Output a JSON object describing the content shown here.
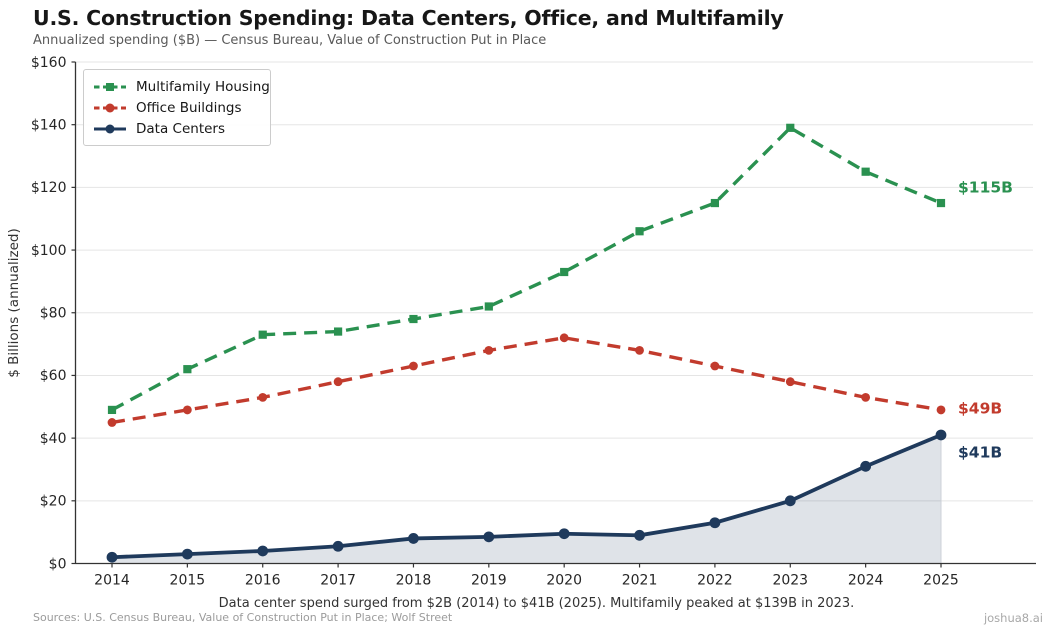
{
  "chart_data": {
    "type": "line",
    "title": "U.S. Construction Spending: Data Centers, Office, and Multifamily",
    "subtitle": "Annualized spending ($B) — Census Bureau, Value of Construction Put in Place",
    "ylabel": "$ Billions (annualized)",
    "xlabel": "",
    "categories": [
      "2014",
      "2015",
      "2016",
      "2017",
      "2018",
      "2019",
      "2020",
      "2021",
      "2022",
      "2023",
      "2024",
      "2025"
    ],
    "y_ticks": [
      "$0",
      "$20",
      "$40",
      "$60",
      "$80",
      "$100",
      "$120",
      "$140",
      "$160"
    ],
    "ylim": [
      0,
      160
    ],
    "grid": "horizontal",
    "legend_position": "upper-left",
    "series": [
      {
        "name": "Multifamily Housing",
        "color": "#2a9150",
        "line_style": "dashed",
        "marker": "square",
        "fill": false,
        "values": [
          49,
          62,
          73,
          74,
          78,
          82,
          93,
          106,
          115,
          139,
          125,
          115
        ],
        "end_label": "$115B"
      },
      {
        "name": "Office Buildings",
        "color": "#c23b2d",
        "line_style": "dashed",
        "marker": "circle",
        "fill": false,
        "values": [
          45,
          49,
          53,
          58,
          63,
          68,
          72,
          68,
          63,
          58,
          53,
          49
        ],
        "end_label": "$49B"
      },
      {
        "name": "Data Centers",
        "color": "#1f3a5c",
        "line_style": "solid",
        "marker": "circle",
        "fill": true,
        "fill_color": "rgba(31,58,92,0.14)",
        "values": [
          2,
          3,
          4,
          5.5,
          8,
          8.5,
          9.5,
          9,
          13,
          20,
          31,
          41
        ],
        "end_label": "$41B"
      }
    ],
    "caption": "Data center spend surged from $2B (2014) to $41B (2025). Multifamily peaked at $139B in 2023.",
    "sources": "Sources: U.S. Census Bureau, Value of Construction Put in Place; Wolf Street",
    "watermark": "joshua8.ai"
  }
}
